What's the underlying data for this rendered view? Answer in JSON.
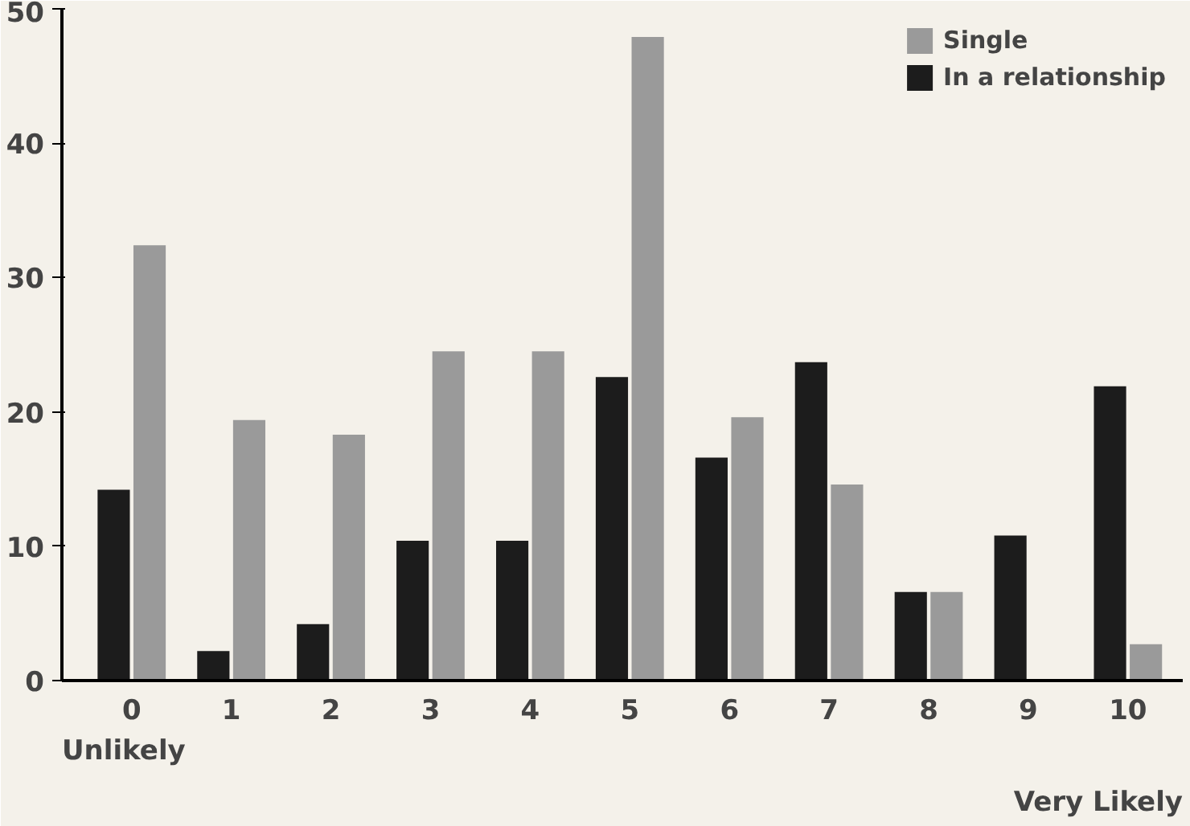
{
  "chart_data": {
    "type": "bar",
    "categories": [
      "0",
      "1",
      "2",
      "3",
      "4",
      "5",
      "6",
      "7",
      "8",
      "9",
      "10"
    ],
    "series": [
      {
        "name": "Single",
        "color": "#9a9a9a",
        "values": [
          32.4,
          19.4,
          18.3,
          24.5,
          24.5,
          47.9,
          19.6,
          14.6,
          6.6,
          0,
          2.7
        ]
      },
      {
        "name": "In a relationship",
        "color": "#1c1c1c",
        "values": [
          14.2,
          2.2,
          4.2,
          10.4,
          10.4,
          22.6,
          16.6,
          23.7,
          6.6,
          10.8,
          21.9
        ]
      }
    ],
    "ylim": [
      0,
      50
    ],
    "yticks": [
      0,
      10,
      20,
      30,
      40,
      50
    ],
    "grid": false,
    "legend": "top right",
    "annotations": [
      "Unlikely",
      "Very Likely"
    ]
  }
}
